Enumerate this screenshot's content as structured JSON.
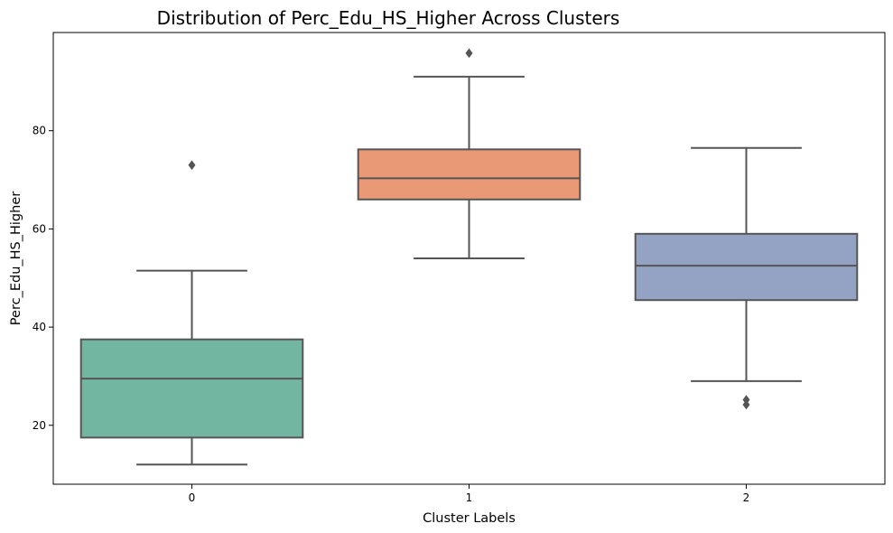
{
  "chart_data": {
    "type": "box",
    "title": "Distribution of Perc_Edu_HS_Higher Across Clusters",
    "xlabel": "Cluster Labels",
    "ylabel": "Perc_Edu_HS_Higher",
    "categories": [
      "0",
      "1",
      "2"
    ],
    "ylim": [
      8,
      100
    ],
    "yticks": [
      20,
      40,
      60,
      80
    ],
    "grid": false,
    "legend": "none",
    "boxes": [
      {
        "category": "0",
        "whisker_low": 12,
        "q1": 17.5,
        "median": 29.5,
        "q3": 37.5,
        "whisker_high": 51.5,
        "outliers": [
          73
        ],
        "color": "#72b5a0"
      },
      {
        "category": "1",
        "whisker_low": 54,
        "q1": 66,
        "median": 70.3,
        "q3": 76.2,
        "whisker_high": 91,
        "outliers": [
          95.8
        ],
        "color": "#e99975"
      },
      {
        "category": "2",
        "whisker_low": 29,
        "q1": 45.5,
        "median": 52.5,
        "q3": 59,
        "whisker_high": 76.5,
        "outliers": [
          25.2,
          24.2
        ],
        "color": "#94a3c4"
      }
    ],
    "line_color": "#555555"
  }
}
